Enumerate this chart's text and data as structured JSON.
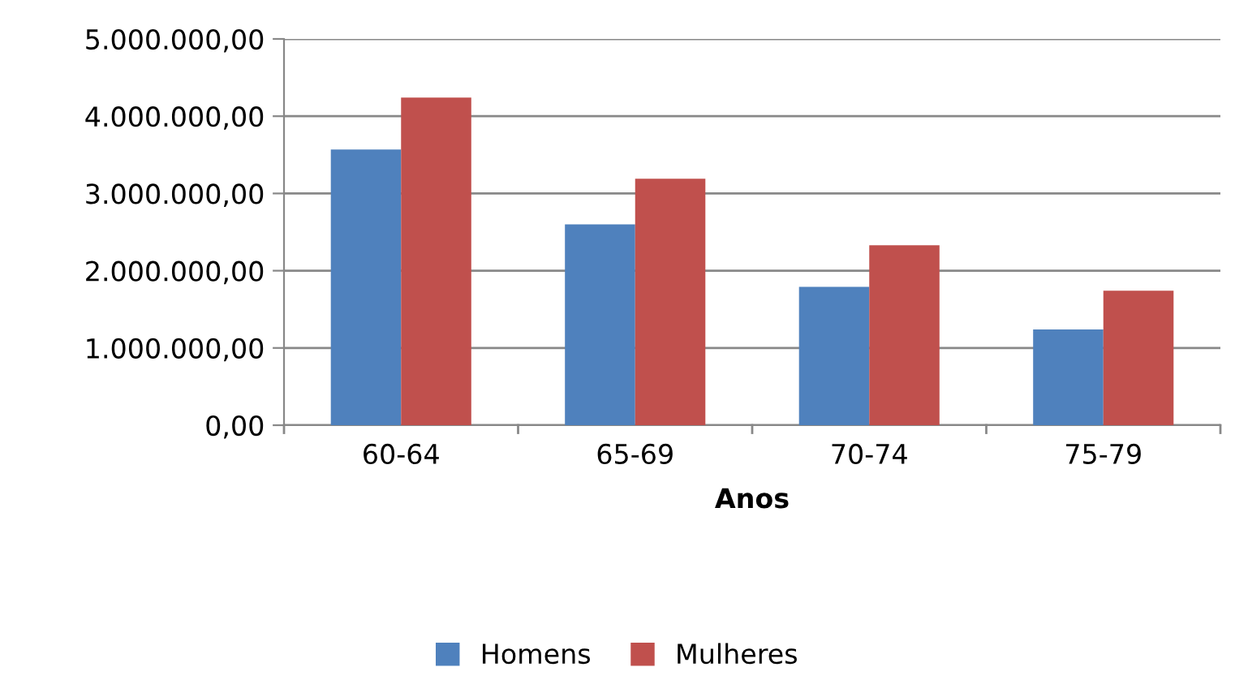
{
  "chart_data": {
    "type": "bar",
    "xlabel": "Anos",
    "categories": [
      "60-64",
      "65-69",
      "70-74",
      "75-79"
    ],
    "series": [
      {
        "name": "Homens",
        "color": "#4f81bd",
        "values": [
          3570000,
          2600000,
          1790000,
          1240000
        ]
      },
      {
        "name": "Mulheres",
        "color": "#c0504d",
        "values": [
          4240000,
          3190000,
          2330000,
          1740000
        ]
      }
    ],
    "ylim": [
      0,
      5000000
    ],
    "yticks": [
      {
        "value": 0,
        "label": "0,00"
      },
      {
        "value": 1000000,
        "label": "1.000.000,00"
      },
      {
        "value": 2000000,
        "label": "2.000.000,00"
      },
      {
        "value": 3000000,
        "label": "3.000.000,00"
      },
      {
        "value": 4000000,
        "label": "4.000.000,00"
      },
      {
        "value": 5000000,
        "label": "5.000.000,00"
      }
    ],
    "grid": "y",
    "legend": "bottom"
  }
}
